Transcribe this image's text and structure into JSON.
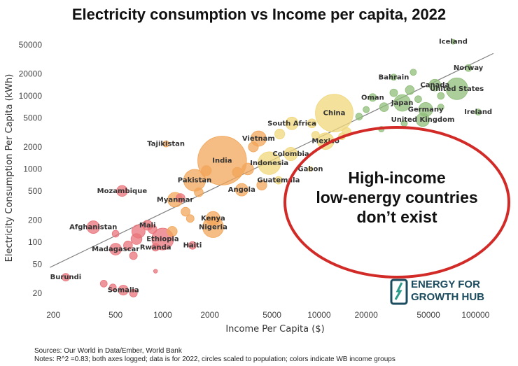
{
  "chart_data": {
    "type": "scatter",
    "title": "Electricity consumption vs Income per capita, 2022",
    "xlabel": "Income Per Capita ($)",
    "ylabel": "Electricity Consumption Per Capita (kWh)",
    "x_scale": "log",
    "y_scale": "log",
    "xlim": [
      180,
      140000
    ],
    "ylim": [
      15,
      65000
    ],
    "x_ticks": [
      200,
      500,
      1000,
      2000,
      5000,
      10000,
      20000,
      50000,
      100000
    ],
    "y_ticks": [
      20,
      50,
      100,
      200,
      500,
      1000,
      2000,
      5000,
      10000,
      20000,
      50000
    ],
    "grid": false,
    "trendline": {
      "x": [
        190,
        130000
      ],
      "y": [
        45,
        38000
      ]
    },
    "group_colors": {
      "low": "#e8737a",
      "lower-middle": "#f2a65a",
      "upper-middle": "#f0d77a",
      "high": "#8fbd7a"
    },
    "points": [
      {
        "label": "Iceland",
        "x": 72000,
        "y": 55000,
        "group": "high",
        "size": 0.6
      },
      {
        "label": "Norway",
        "x": 90000,
        "y": 24000,
        "group": "high",
        "size": 1.2
      },
      {
        "label": "Bahrain",
        "x": 30000,
        "y": 18000,
        "group": "high",
        "size": 1.0
      },
      {
        "label": "Canada",
        "x": 55000,
        "y": 14000,
        "group": "high",
        "size": 3.5
      },
      {
        "label": "United States",
        "x": 76000,
        "y": 12500,
        "group": "high",
        "size": 12
      },
      {
        "label": "Oman",
        "x": 22000,
        "y": 9500,
        "group": "high",
        "size": 1.5
      },
      {
        "label": "Japan",
        "x": 34000,
        "y": 8000,
        "group": "high",
        "size": 7
      },
      {
        "label": "Germany",
        "x": 48000,
        "y": 6500,
        "group": "high",
        "size": 5
      },
      {
        "label": "Ireland",
        "x": 104000,
        "y": 6000,
        "group": "high",
        "size": 1.0
      },
      {
        "label": "United Kingdom",
        "x": 46000,
        "y": 4700,
        "group": "high",
        "size": 4.5
      },
      {
        "label": "China",
        "x": 12500,
        "y": 5800,
        "group": "upper-middle",
        "size": 36
      },
      {
        "label": "South Africa",
        "x": 6700,
        "y": 4200,
        "group": "upper-middle",
        "size": 4
      },
      {
        "label": "Mexico",
        "x": 11000,
        "y": 2400,
        "group": "upper-middle",
        "size": 7
      },
      {
        "label": "Vietnam",
        "x": 4100,
        "y": 2600,
        "group": "lower-middle",
        "size": 6
      },
      {
        "label": "Colombia",
        "x": 6600,
        "y": 1600,
        "group": "upper-middle",
        "size": 4.5
      },
      {
        "label": "Gabon",
        "x": 8800,
        "y": 1000,
        "group": "upper-middle",
        "size": 0.6
      },
      {
        "label": "Indonesia",
        "x": 4800,
        "y": 1200,
        "group": "upper-middle",
        "size": 13
      },
      {
        "label": "Guatemala",
        "x": 5500,
        "y": 700,
        "group": "upper-middle",
        "size": 1.5
      },
      {
        "label": "India",
        "x": 2400,
        "y": 1300,
        "group": "lower-middle",
        "size": 60
      },
      {
        "label": "Tajikistan",
        "x": 1050,
        "y": 2200,
        "group": "lower-middle",
        "size": 1.0
      },
      {
        "label": "Pakistan",
        "x": 1600,
        "y": 700,
        "group": "lower-middle",
        "size": 12
      },
      {
        "label": "Angola",
        "x": 3200,
        "y": 520,
        "group": "lower-middle",
        "size": 4
      },
      {
        "label": "Mozambique",
        "x": 550,
        "y": 500,
        "group": "low",
        "size": 3
      },
      {
        "label": "Myanmar",
        "x": 1200,
        "y": 380,
        "group": "lower-middle",
        "size": 5.5
      },
      {
        "label": "Kenya",
        "x": 2100,
        "y": 210,
        "group": "lower-middle",
        "size": 5
      },
      {
        "label": "Nigeria",
        "x": 2100,
        "y": 160,
        "group": "lower-middle",
        "size": 11
      },
      {
        "label": "Mali",
        "x": 800,
        "y": 170,
        "group": "low",
        "size": 2.5
      },
      {
        "label": "Afghanistan",
        "x": 360,
        "y": 160,
        "group": "low",
        "size": 4
      },
      {
        "label": "Ethiopia",
        "x": 1000,
        "y": 110,
        "group": "low",
        "size": 12
      },
      {
        "label": "Madagascar",
        "x": 500,
        "y": 80,
        "group": "low",
        "size": 3.5
      },
      {
        "label": "Rwanda",
        "x": 900,
        "y": 85,
        "group": "low",
        "size": 1.5
      },
      {
        "label": "Haiti",
        "x": 1550,
        "y": 90,
        "group": "low",
        "size": 1.5
      },
      {
        "label": "Burundi",
        "x": 240,
        "y": 33,
        "group": "low",
        "size": 1.5
      },
      {
        "label": "Somalia",
        "x": 560,
        "y": 22,
        "group": "low",
        "size": 2.5
      }
    ],
    "extra_points": [
      {
        "x": 40000,
        "y": 21000,
        "group": "high",
        "size": 1.0
      },
      {
        "x": 38000,
        "y": 12000,
        "group": "high",
        "size": 2.0
      },
      {
        "x": 30000,
        "y": 11000,
        "group": "high",
        "size": 1.5
      },
      {
        "x": 43000,
        "y": 9000,
        "group": "high",
        "size": 1.2
      },
      {
        "x": 26000,
        "y": 7000,
        "group": "high",
        "size": 2.0
      },
      {
        "x": 20000,
        "y": 6500,
        "group": "high",
        "size": 1.0
      },
      {
        "x": 18000,
        "y": 5200,
        "group": "high",
        "size": 1.2
      },
      {
        "x": 60000,
        "y": 7000,
        "group": "high",
        "size": 1.0
      },
      {
        "x": 60000,
        "y": 10000,
        "group": "high",
        "size": 1.2
      },
      {
        "x": 35000,
        "y": 4200,
        "group": "high",
        "size": 1.0
      },
      {
        "x": 25000,
        "y": 3500,
        "group": "high",
        "size": 0.8
      },
      {
        "x": 15000,
        "y": 3200,
        "group": "upper-middle",
        "size": 2.0
      },
      {
        "x": 9000,
        "y": 4200,
        "group": "upper-middle",
        "size": 2.0
      },
      {
        "x": 14000,
        "y": 2800,
        "group": "upper-middle",
        "size": 1.2
      },
      {
        "x": 9500,
        "y": 2900,
        "group": "upper-middle",
        "size": 1.5
      },
      {
        "x": 5600,
        "y": 3000,
        "group": "upper-middle",
        "size": 2.5
      },
      {
        "x": 3800,
        "y": 2000,
        "group": "lower-middle",
        "size": 2.5
      },
      {
        "x": 3500,
        "y": 1000,
        "group": "lower-middle",
        "size": 3.5
      },
      {
        "x": 4300,
        "y": 600,
        "group": "lower-middle",
        "size": 2.5
      },
      {
        "x": 3000,
        "y": 900,
        "group": "lower-middle",
        "size": 2.5
      },
      {
        "x": 1900,
        "y": 950,
        "group": "lower-middle",
        "size": 2.5
      },
      {
        "x": 1700,
        "y": 480,
        "group": "lower-middle",
        "size": 2.0
      },
      {
        "x": 1400,
        "y": 260,
        "group": "lower-middle",
        "size": 2.0
      },
      {
        "x": 1500,
        "y": 210,
        "group": "lower-middle",
        "size": 1.5
      },
      {
        "x": 1150,
        "y": 140,
        "group": "lower-middle",
        "size": 2.5
      },
      {
        "x": 1300,
        "y": 400,
        "group": "low",
        "size": 2.0
      },
      {
        "x": 700,
        "y": 140,
        "group": "low",
        "size": 4.5
      },
      {
        "x": 680,
        "y": 110,
        "group": "low",
        "size": 3.0
      },
      {
        "x": 600,
        "y": 90,
        "group": "low",
        "size": 2.0
      },
      {
        "x": 650,
        "y": 65,
        "group": "low",
        "size": 1.5
      },
      {
        "x": 860,
        "y": 150,
        "group": "low",
        "size": 2.0
      },
      {
        "x": 900,
        "y": 40,
        "group": "low",
        "size": 0.4
      },
      {
        "x": 480,
        "y": 24,
        "group": "low",
        "size": 1.2
      },
      {
        "x": 420,
        "y": 27,
        "group": "low",
        "size": 1.2
      },
      {
        "x": 650,
        "y": 20,
        "group": "low",
        "size": 1.5
      },
      {
        "x": 500,
        "y": 130,
        "group": "low",
        "size": 1.2
      }
    ]
  },
  "callout": {
    "lines": [
      "High-income",
      "low-energy countries",
      "don’t exist"
    ]
  },
  "logo": {
    "line1": "ENERGY FOR",
    "line2": "GROWTH HUB",
    "color": "#1b4b5e",
    "accent": "#2a9a8a"
  },
  "footer": {
    "sources": "Sources: Our World in Data/Ember, World Bank",
    "notes": "Notes: R^2 =0.83; both axes logged; data is for 2022, circles scaled to population; colors indicate WB income groups"
  }
}
